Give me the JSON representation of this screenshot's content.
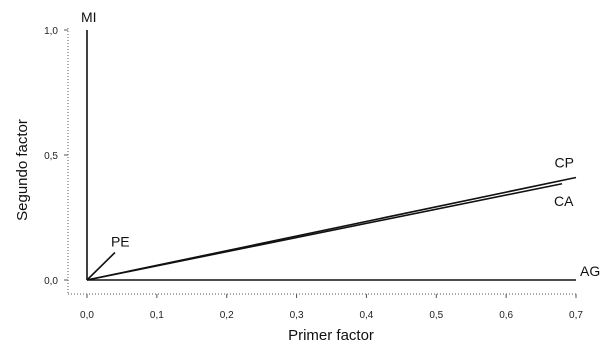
{
  "chart_data": {
    "type": "line",
    "title": "",
    "xlabel": "Primer factor",
    "ylabel": "Segundo factor",
    "xlim": [
      0,
      0.7
    ],
    "ylim": [
      0,
      1.0
    ],
    "x_ticks": [
      0,
      0.1,
      0.2,
      0.3,
      0.4,
      0.5,
      0.6,
      0.7
    ],
    "x_tick_labels": [
      "0,0",
      "0,1",
      "0,2",
      "0,3",
      "0,4",
      "0,5",
      "0,6",
      "0,7"
    ],
    "y_ticks": [
      0,
      0.5,
      1.0
    ],
    "y_tick_labels": [
      "0,0",
      "0,5",
      "1,0"
    ],
    "grid": false,
    "legend": "none",
    "line_color": "#111111",
    "series": [
      {
        "name": "MI",
        "x": [
          0,
          0
        ],
        "y": [
          0,
          1.0
        ]
      },
      {
        "name": "CP",
        "x": [
          0,
          0.7
        ],
        "y": [
          0,
          0.41
        ]
      },
      {
        "name": "CA",
        "x": [
          0,
          0.68
        ],
        "y": [
          0,
          0.385
        ]
      },
      {
        "name": "AG",
        "x": [
          0,
          0.7
        ],
        "y": [
          0,
          0
        ]
      },
      {
        "name": "PE",
        "x": [
          0,
          0.04
        ],
        "y": [
          0,
          0.11
        ]
      }
    ]
  }
}
